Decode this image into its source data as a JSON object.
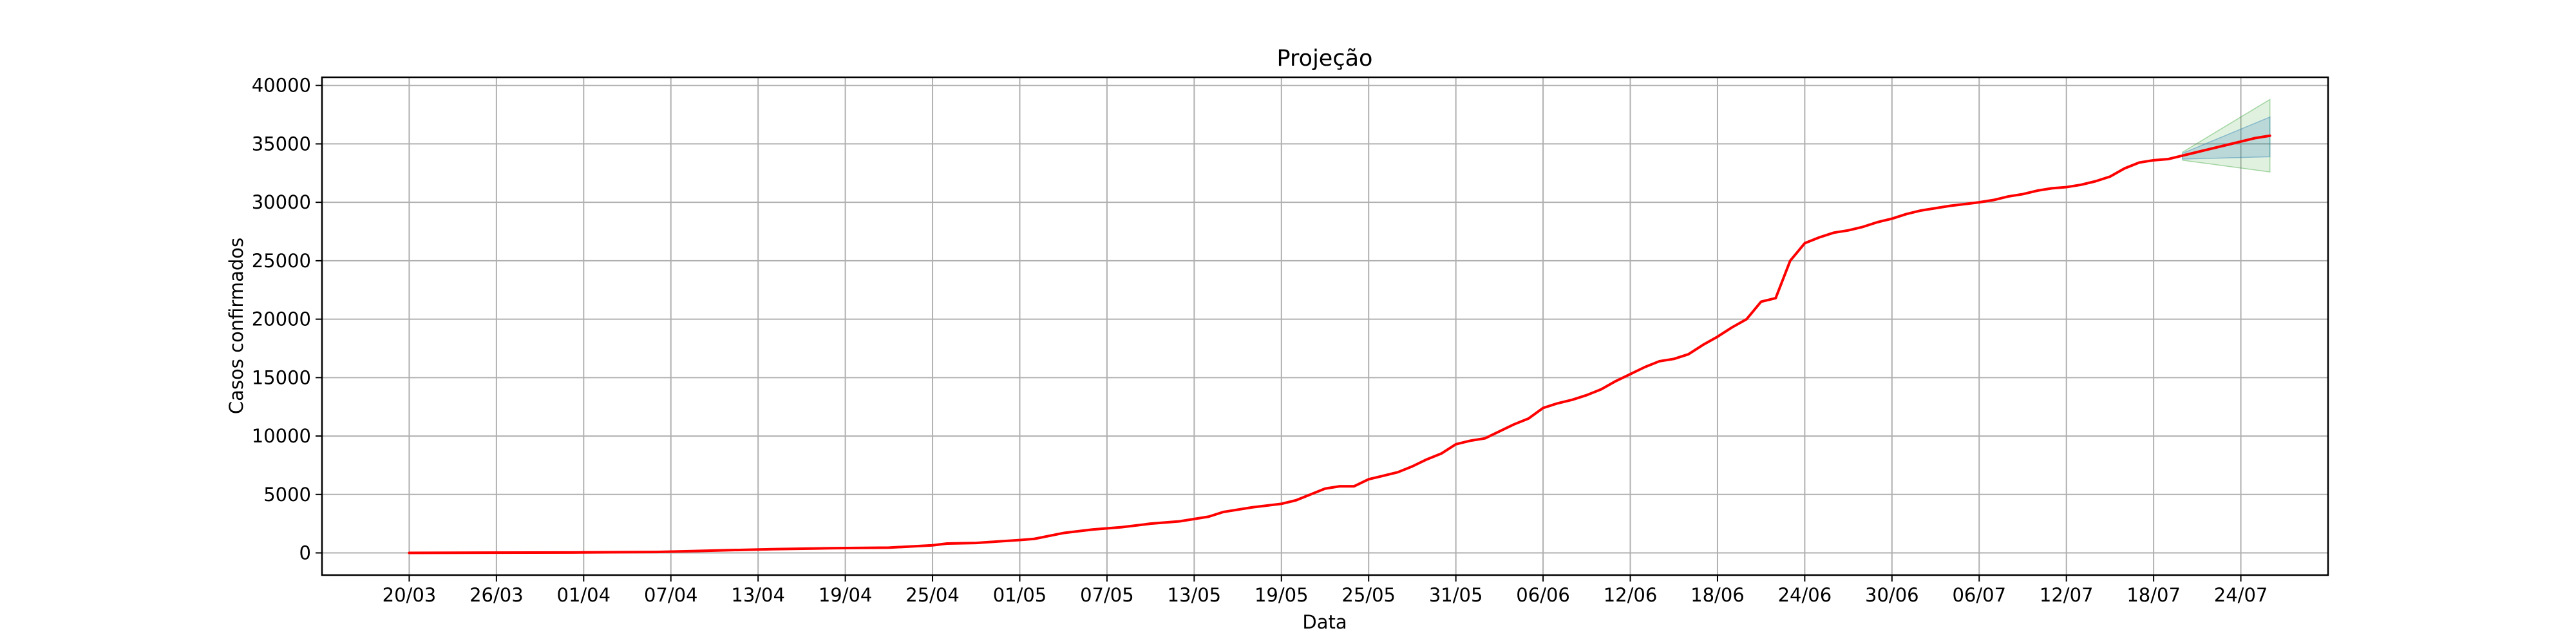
{
  "chart_data": {
    "type": "line",
    "title": "Projeção",
    "xlabel": "Data",
    "ylabel": "Casos confirmados",
    "grid": true,
    "legend": "none",
    "xlim": [
      "2020-03-14",
      "2020-07-30"
    ],
    "ylim": [
      -1900,
      40700
    ],
    "x_ticks": [
      "2020-03-20",
      "2020-03-26",
      "2020-04-01",
      "2020-04-07",
      "2020-04-13",
      "2020-04-19",
      "2020-04-25",
      "2020-05-01",
      "2020-05-07",
      "2020-05-13",
      "2020-05-19",
      "2020-05-25",
      "2020-05-31",
      "2020-06-06",
      "2020-06-12",
      "2020-06-18",
      "2020-06-24",
      "2020-06-30",
      "2020-07-06",
      "2020-07-12",
      "2020-07-18",
      "2020-07-24"
    ],
    "x_tick_labels": [
      "20/03",
      "26/03",
      "01/04",
      "07/04",
      "13/04",
      "19/04",
      "25/04",
      "01/05",
      "07/05",
      "13/05",
      "19/05",
      "25/05",
      "31/05",
      "06/06",
      "12/06",
      "18/06",
      "24/06",
      "30/06",
      "06/07",
      "12/07",
      "18/07",
      "24/07"
    ],
    "y_ticks": [
      0,
      5000,
      10000,
      15000,
      20000,
      25000,
      30000,
      35000,
      40000
    ],
    "y_tick_labels": [
      "0",
      "5000",
      "10000",
      "15000",
      "20000",
      "25000",
      "30000",
      "35000",
      "40000"
    ],
    "series": [
      {
        "kind": "line",
        "color": "#ff0000",
        "points": [
          [
            "2020-03-20",
            0
          ],
          [
            "2020-04-01",
            40
          ],
          [
            "2020-04-06",
            80
          ],
          [
            "2020-04-10",
            200
          ],
          [
            "2020-04-14",
            320
          ],
          [
            "2020-04-18",
            400
          ],
          [
            "2020-04-22",
            450
          ],
          [
            "2020-04-25",
            650
          ],
          [
            "2020-04-26",
            800
          ],
          [
            "2020-04-28",
            850
          ],
          [
            "2020-05-01",
            1100
          ],
          [
            "2020-05-02",
            1200
          ],
          [
            "2020-05-04",
            1700
          ],
          [
            "2020-05-06",
            2000
          ],
          [
            "2020-05-08",
            2200
          ],
          [
            "2020-05-10",
            2500
          ],
          [
            "2020-05-12",
            2700
          ],
          [
            "2020-05-14",
            3100
          ],
          [
            "2020-05-15",
            3500
          ],
          [
            "2020-05-17",
            3900
          ],
          [
            "2020-05-19",
            4200
          ],
          [
            "2020-05-20",
            4500
          ],
          [
            "2020-05-22",
            5500
          ],
          [
            "2020-05-23",
            5700
          ],
          [
            "2020-05-24",
            5700
          ],
          [
            "2020-05-25",
            6300
          ],
          [
            "2020-05-26",
            6600
          ],
          [
            "2020-05-27",
            6900
          ],
          [
            "2020-05-28",
            7400
          ],
          [
            "2020-05-29",
            8000
          ],
          [
            "2020-05-30",
            8500
          ],
          [
            "2020-05-31",
            9300
          ],
          [
            "2020-06-01",
            9600
          ],
          [
            "2020-06-02",
            9800
          ],
          [
            "2020-06-03",
            10400
          ],
          [
            "2020-06-04",
            11000
          ],
          [
            "2020-06-05",
            11500
          ],
          [
            "2020-06-06",
            12400
          ],
          [
            "2020-06-07",
            12800
          ],
          [
            "2020-06-08",
            13100
          ],
          [
            "2020-06-09",
            13500
          ],
          [
            "2020-06-10",
            14000
          ],
          [
            "2020-06-11",
            14700
          ],
          [
            "2020-06-12",
            15300
          ],
          [
            "2020-06-13",
            15900
          ],
          [
            "2020-06-14",
            16400
          ],
          [
            "2020-06-15",
            16600
          ],
          [
            "2020-06-16",
            17000
          ],
          [
            "2020-06-17",
            17800
          ],
          [
            "2020-06-18",
            18500
          ],
          [
            "2020-06-19",
            19300
          ],
          [
            "2020-06-20",
            20000
          ],
          [
            "2020-06-21",
            21500
          ],
          [
            "2020-06-22",
            21800
          ],
          [
            "2020-06-23",
            25000
          ],
          [
            "2020-06-24",
            26500
          ],
          [
            "2020-06-25",
            27000
          ],
          [
            "2020-06-26",
            27400
          ],
          [
            "2020-06-27",
            27600
          ],
          [
            "2020-06-28",
            27900
          ],
          [
            "2020-06-29",
            28300
          ],
          [
            "2020-06-30",
            28600
          ],
          [
            "2020-07-01",
            29000
          ],
          [
            "2020-07-02",
            29300
          ],
          [
            "2020-07-03",
            29500
          ],
          [
            "2020-07-04",
            29700
          ],
          [
            "2020-07-06",
            30000
          ],
          [
            "2020-07-07",
            30200
          ],
          [
            "2020-07-08",
            30500
          ],
          [
            "2020-07-09",
            30700
          ],
          [
            "2020-07-10",
            31000
          ],
          [
            "2020-07-11",
            31200
          ],
          [
            "2020-07-12",
            31300
          ],
          [
            "2020-07-13",
            31500
          ],
          [
            "2020-07-14",
            31800
          ],
          [
            "2020-07-15",
            32200
          ],
          [
            "2020-07-16",
            32900
          ],
          [
            "2020-07-17",
            33400
          ],
          [
            "2020-07-18",
            33600
          ],
          [
            "2020-07-19",
            33700
          ],
          [
            "2020-07-20",
            34000
          ],
          [
            "2020-07-21",
            34300
          ],
          [
            "2020-07-22",
            34600
          ],
          [
            "2020-07-23",
            34900
          ],
          [
            "2020-07-24",
            35200
          ],
          [
            "2020-07-25",
            35500
          ],
          [
            "2020-07-26",
            35700
          ]
        ]
      },
      {
        "kind": "band",
        "color": "#2ca02c",
        "opacity": 0.15,
        "x": [
          "2020-07-20",
          "2020-07-26"
        ],
        "upper": [
          34300,
          38800
        ],
        "lower": [
          33600,
          32600
        ]
      },
      {
        "kind": "band",
        "color": "#1f77b4",
        "opacity": 0.2,
        "x": [
          "2020-07-20",
          "2020-07-26"
        ],
        "upper": [
          34200,
          37300
        ],
        "lower": [
          33700,
          33900
        ]
      }
    ]
  }
}
